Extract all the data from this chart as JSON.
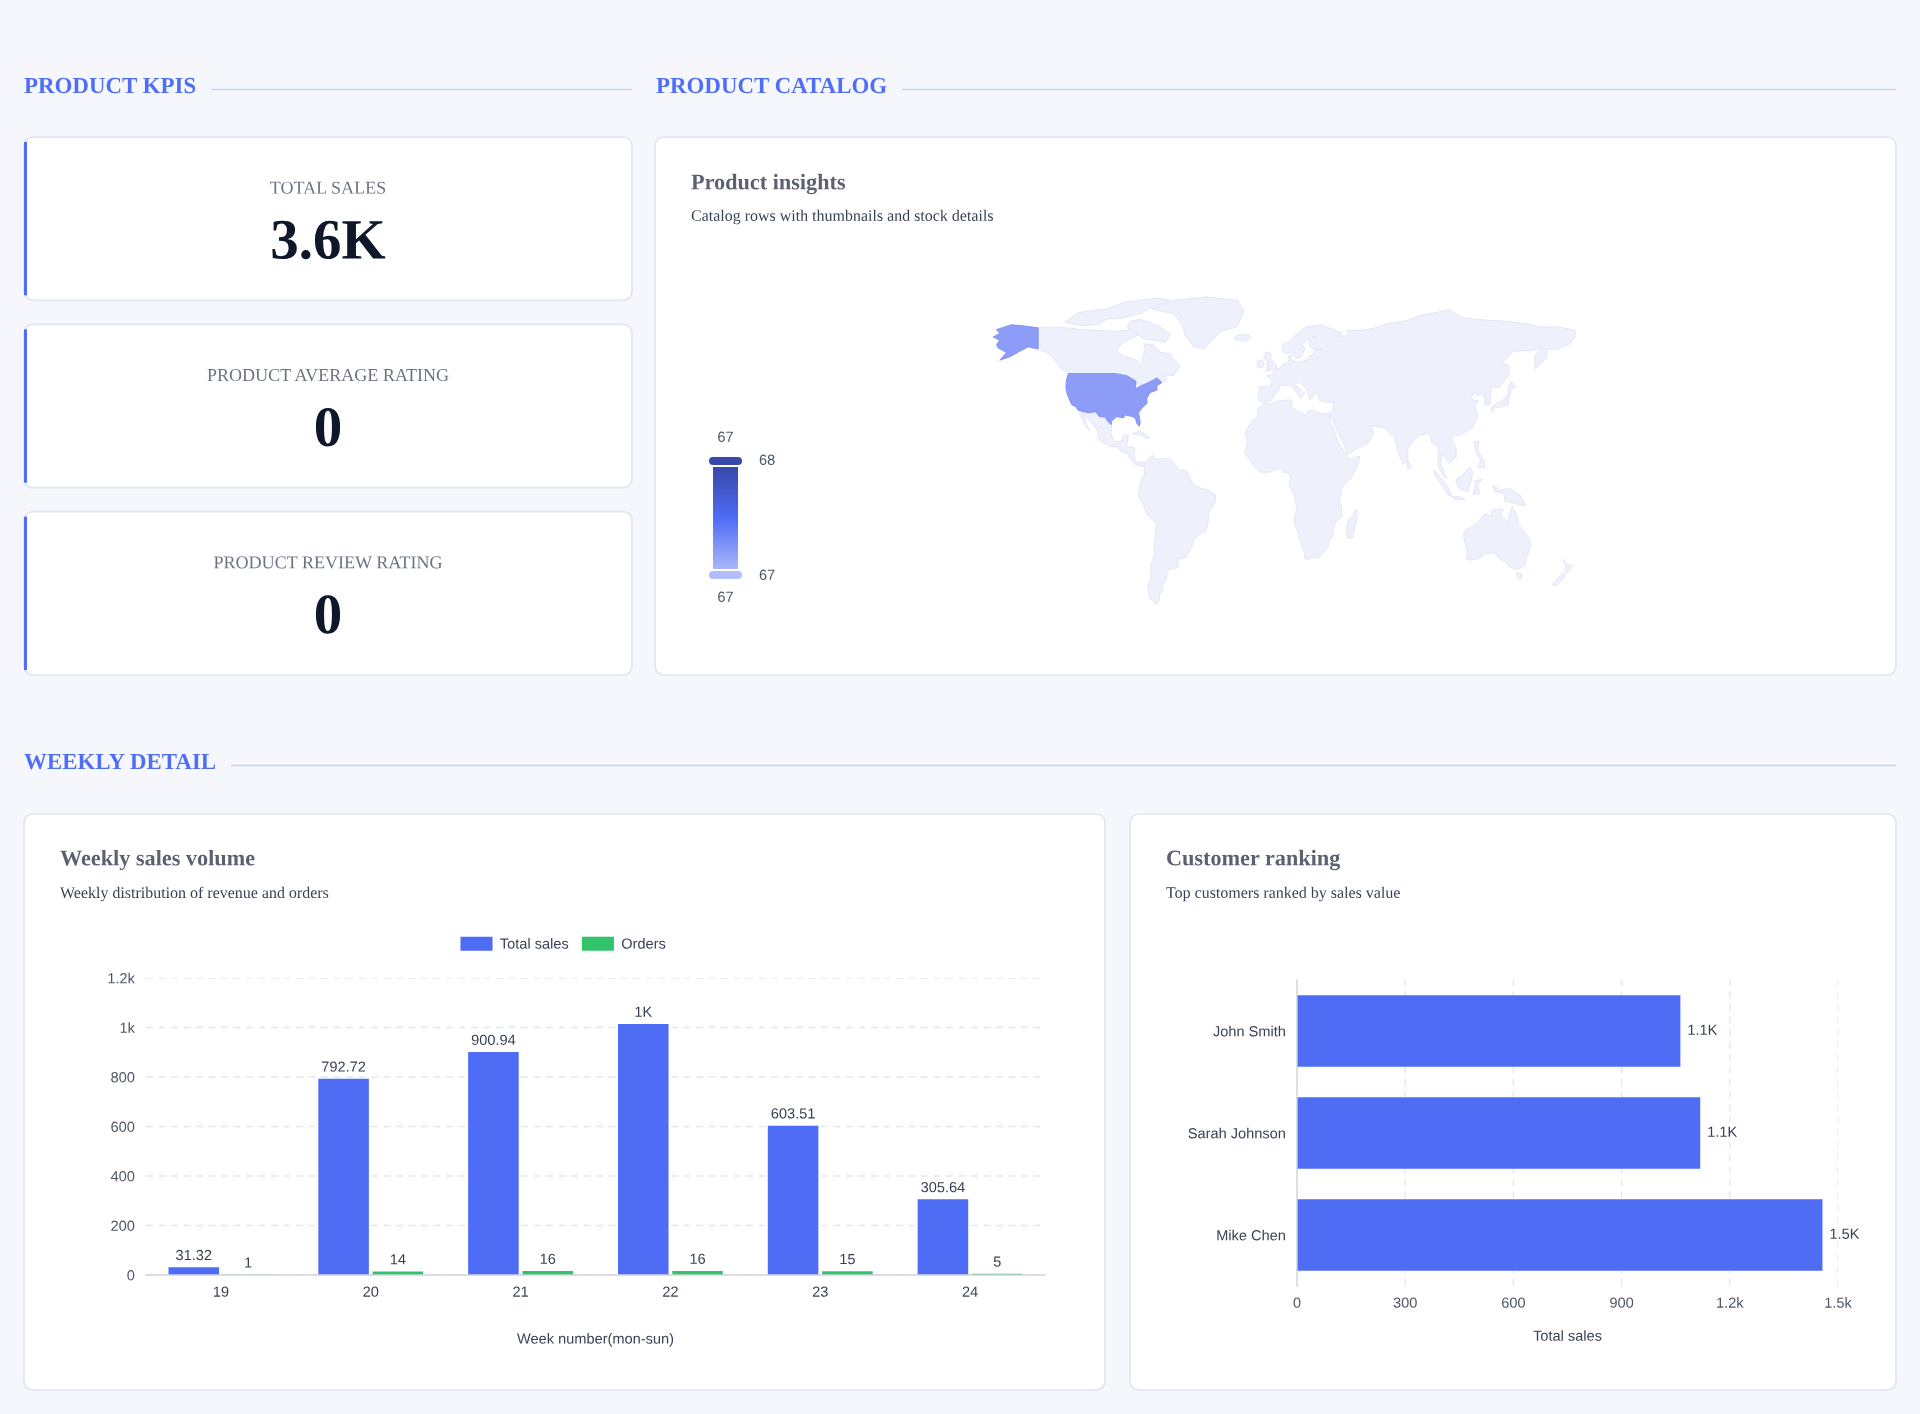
{
  "chart_data": [
    {
      "type": "other",
      "title": "PRODUCT KPIS"
    },
    {
      "type": "other",
      "categories": [
        "TOTAL SALES",
        "PRODUCT AVERAGE RATING",
        "PRODUCT REVIEW RATING"
      ],
      "value_labels": [
        "3.6K",
        "0",
        "0"
      ]
    },
    {
      "type": "other",
      "title": "PRODUCT CATALOG"
    },
    {
      "type": "other",
      "title": "Product insights",
      "subtitle": "Catalog rows with thumbnails and stock details",
      "annotations": [
        "67",
        "68",
        "67",
        "67"
      ]
    },
    {
      "type": "other",
      "title": "WEEKLY DETAIL"
    },
    {
      "type": "bar",
      "title": "Weekly sales volume",
      "subtitle": "Weekly distribution of revenue and orders",
      "xlabel": "Week number(mon-sun)",
      "categories": [
        "19",
        "20",
        "21",
        "22",
        "23",
        "24"
      ],
      "series": [
        {
          "name": "Total sales",
          "color": "#4f6cf5",
          "values": [
            31.32,
            792.72,
            900.94,
            1014,
            603.51,
            305.64
          ],
          "value_labels": [
            "31.32",
            "792.72",
            "900.94",
            "1K",
            "603.51",
            "305.64"
          ]
        },
        {
          "name": "Orders",
          "color": "#33c46b",
          "values": [
            1,
            14,
            16,
            16,
            15,
            5
          ],
          "value_labels": [
            "1",
            "14",
            "16",
            "16",
            "15",
            "5"
          ]
        }
      ],
      "ylim": [
        0,
        1200
      ],
      "yticks": [
        0,
        200,
        400,
        600,
        800,
        {
          "value": 1000,
          "label": "1k"
        },
        {
          "value": 1200,
          "label": "1.2k"
        }
      ],
      "grid": "y",
      "legend": "top"
    },
    {
      "type": "bar",
      "orientation": "horizontal",
      "title": "Customer ranking",
      "subtitle": "Top customers ranked by sales value",
      "xlabel": "Total sales",
      "categories": [
        "John Smith",
        "Sarah Johnson",
        "Mike Chen"
      ],
      "values": [
        1063,
        1118,
        1457
      ],
      "value_labels": [
        "1.1K",
        "1.1K",
        "1.5K"
      ],
      "color": "#4f6cf5",
      "xlim": [
        0,
        1500
      ],
      "xticks": [
        0,
        300,
        600,
        900,
        {
          "value": 1200,
          "label": "1.2k"
        },
        {
          "value": 1500,
          "label": "1.5k"
        }
      ],
      "grid": "x"
    }
  ]
}
